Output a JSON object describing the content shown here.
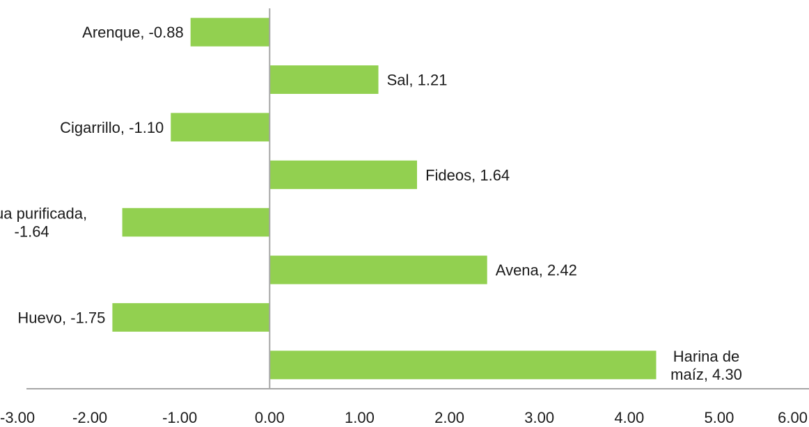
{
  "chart_data": {
    "type": "bar",
    "orientation": "horizontal",
    "categories": [
      "Arenque",
      "Sal",
      "Cigarrillo",
      "Fideos",
      "Agua purificada",
      "Avena",
      "Huevo",
      "Harina de maíz"
    ],
    "values": [
      -0.88,
      1.21,
      -1.1,
      1.64,
      -1.64,
      2.42,
      -1.75,
      4.3
    ],
    "data_labels": [
      [
        "Arenque, -0.88"
      ],
      [
        "Sal, 1.21"
      ],
      [
        "Cigarrillo, -1.10"
      ],
      [
        "Fideos, 1.64"
      ],
      [
        "Agua purificada,",
        "-1.64"
      ],
      [
        "Avena, 2.42"
      ],
      [
        "Huevo, -1.75"
      ],
      [
        "Harina de",
        "maíz, 4.30"
      ]
    ],
    "x_tick_labels": [
      "-3.00",
      "-2.00",
      "-1.00",
      "0.00",
      "1.00",
      "2.00",
      "3.00",
      "4.00",
      "5.00",
      "6.00"
    ],
    "xlim": [
      -3,
      6
    ],
    "grid": false,
    "legend": "none",
    "bar_color": "#92d050",
    "axis_color": "#a6a6a6"
  }
}
